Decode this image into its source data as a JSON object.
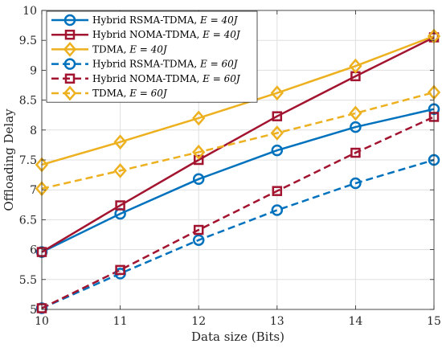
{
  "chart_data": {
    "type": "line",
    "xlabel": "Data size (Bits)",
    "ylabel": "Offloading Delay",
    "xlim": [
      10,
      15
    ],
    "ylim": [
      5,
      10
    ],
    "xticks": [
      "10",
      "11",
      "12",
      "13",
      "14",
      "15"
    ],
    "yticks": [
      "5",
      "5.5",
      "6",
      "6.5",
      "7",
      "7.5",
      "8",
      "8.5",
      "9",
      "9.5",
      "10"
    ],
    "grid": true,
    "legend_position": "top-left",
    "x": [
      10,
      11,
      12,
      13,
      14,
      15
    ],
    "series": [
      {
        "name": "Hybrid RSMA-TDMA, E = 40J",
        "name_main": "Hybrid RSMA-TDMA, ",
        "name_param": "E = 40J",
        "values": [
          5.96,
          6.6,
          7.18,
          7.66,
          8.05,
          8.35
        ],
        "color": "#0072BD",
        "marker": "circle",
        "dash": "solid"
      },
      {
        "name": "Hybrid NOMA-TDMA, E = 40J",
        "name_main": "Hybrid NOMA-TDMA, ",
        "name_param": "E = 40J",
        "values": [
          5.96,
          6.74,
          7.5,
          8.23,
          8.9,
          9.55
        ],
        "color": "#A2142F",
        "marker": "square",
        "dash": "solid"
      },
      {
        "name": "TDMA, E = 40J",
        "name_main": "TDMA, ",
        "name_param": "E = 40J",
        "values": [
          7.42,
          7.8,
          8.2,
          8.62,
          9.07,
          9.57
        ],
        "color": "#EDB120",
        "marker": "diamond",
        "dash": "solid"
      },
      {
        "name": "Hybrid RSMA-TDMA, E = 60J",
        "name_main": "Hybrid RSMA-TDMA, ",
        "name_param": "E = 60J",
        "values": [
          5.02,
          5.6,
          6.16,
          6.66,
          7.11,
          7.5
        ],
        "color": "#0072BD",
        "marker": "circle",
        "dash": "dashed"
      },
      {
        "name": "Hybrid NOMA-TDMA, E = 60J",
        "name_main": "Hybrid NOMA-TDMA, ",
        "name_param": "E = 60J",
        "values": [
          5.02,
          5.66,
          6.33,
          6.98,
          7.62,
          8.22
        ],
        "color": "#A2142F",
        "marker": "square",
        "dash": "dashed"
      },
      {
        "name": "TDMA, E = 60J",
        "name_main": "TDMA, ",
        "name_param": "E = 60J",
        "values": [
          7.02,
          7.32,
          7.63,
          7.95,
          8.28,
          8.63
        ],
        "color": "#EDB120",
        "marker": "diamond",
        "dash": "dashed"
      }
    ]
  }
}
